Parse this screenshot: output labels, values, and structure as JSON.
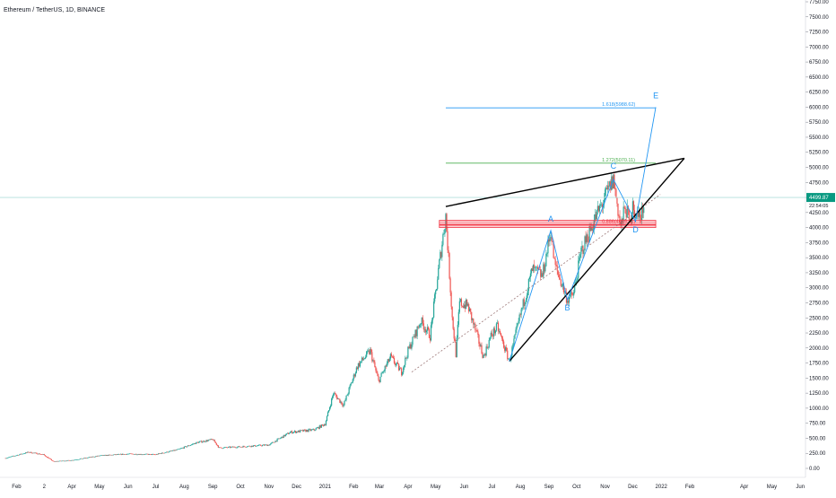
{
  "header": {
    "title": "Ethereum / TetherUS, 1D, BINANCE"
  },
  "colors": {
    "up": "#26a69a",
    "down": "#ef5350",
    "wave_line": "#2196f3",
    "fib_blue": "#2196f3",
    "fib_green": "#4caf50",
    "fib_red": "#f23645",
    "trendline": "#000000",
    "dotted": "#9e7a7a",
    "price_tag": "#089981",
    "current_line": "#b2dfdb"
  },
  "chart_data": {
    "type": "candlestick",
    "title": "Ethereum / TetherUS, 1D, BINANCE",
    "ylim": [
      -100,
      7800
    ],
    "y_ticks": [
      0,
      250,
      500,
      750,
      1000,
      1250,
      1500,
      1750,
      2000,
      2250,
      2500,
      2750,
      3000,
      3250,
      3500,
      3750,
      4000,
      4250,
      4500,
      4750,
      5000,
      5250,
      5500,
      5750,
      6000,
      6250,
      6500,
      6750,
      7000,
      7250,
      7500,
      7750
    ],
    "y_tick_labels": [
      "0.00",
      "250.00",
      "500.00",
      "750.00",
      "1000.00",
      "1250.00",
      "1500.00",
      "1750.00",
      "2000.00",
      "2250.00",
      "2500.00",
      "2750.00",
      "3000.00",
      "3250.00",
      "3500.00",
      "3750.00",
      "4000.00",
      "4250.00",
      "4500.00",
      "4750.00",
      "5000.00",
      "5250.00",
      "5500.00",
      "5750.00",
      "6000.00",
      "6250.00",
      "6500.00",
      "6750.00",
      "7000.00",
      "7250.00",
      "7500.00",
      "7750.00"
    ],
    "x_ticks": [
      {
        "label": "Feb",
        "date": "2020-02-01"
      },
      {
        "label": "2",
        "date": "2020-03-02"
      },
      {
        "label": "Apr",
        "date": "2020-04-01"
      },
      {
        "label": "May",
        "date": "2020-05-01"
      },
      {
        "label": "Jun",
        "date": "2020-06-01"
      },
      {
        "label": "Jul",
        "date": "2020-07-01"
      },
      {
        "label": "Aug",
        "date": "2020-08-01"
      },
      {
        "label": "Sep",
        "date": "2020-09-01"
      },
      {
        "label": "Oct",
        "date": "2020-10-01"
      },
      {
        "label": "Nov",
        "date": "2020-11-01"
      },
      {
        "label": "Dec",
        "date": "2020-12-01"
      },
      {
        "label": "2021",
        "date": "2021-01-01"
      },
      {
        "label": "Feb",
        "date": "2021-02-01"
      },
      {
        "label": "Mar",
        "date": "2021-03-01"
      },
      {
        "label": "Apr",
        "date": "2021-04-01"
      },
      {
        "label": "May",
        "date": "2021-05-01"
      },
      {
        "label": "Jun",
        "date": "2021-06-01"
      },
      {
        "label": "Jul",
        "date": "2021-07-01"
      },
      {
        "label": "Aug",
        "date": "2021-08-01"
      },
      {
        "label": "Sep",
        "date": "2021-09-01"
      },
      {
        "label": "Oct",
        "date": "2021-10-01"
      },
      {
        "label": "Nov",
        "date": "2021-11-01"
      },
      {
        "label": "Dec",
        "date": "2021-12-01"
      },
      {
        "label": "2022",
        "date": "2022-01-01"
      },
      {
        "label": "Feb",
        "date": "2022-02-01"
      },
      {
        "label": "Apr",
        "date": "2022-04-01"
      },
      {
        "label": "May",
        "date": "2022-05-01"
      },
      {
        "label": "Jun",
        "date": "2022-06-01"
      }
    ],
    "price_path": [
      [
        "2020-01-20",
        170
      ],
      [
        "2020-02-14",
        270
      ],
      [
        "2020-03-01",
        230
      ],
      [
        "2020-03-12",
        115
      ],
      [
        "2020-04-01",
        135
      ],
      [
        "2020-05-01",
        210
      ],
      [
        "2020-06-01",
        240
      ],
      [
        "2020-07-01",
        230
      ],
      [
        "2020-07-25",
        310
      ],
      [
        "2020-08-15",
        430
      ],
      [
        "2020-09-01",
        480
      ],
      [
        "2020-09-08",
        340
      ],
      [
        "2020-10-01",
        360
      ],
      [
        "2020-11-01",
        390
      ],
      [
        "2020-11-24",
        600
      ],
      [
        "2020-12-20",
        640
      ],
      [
        "2021-01-01",
        740
      ],
      [
        "2021-01-10",
        1250
      ],
      [
        "2021-01-21",
        1050
      ],
      [
        "2021-02-05",
        1700
      ],
      [
        "2021-02-19",
        1950
      ],
      [
        "2021-02-28",
        1450
      ],
      [
        "2021-03-13",
        1850
      ],
      [
        "2021-03-25",
        1600
      ],
      [
        "2021-04-01",
        1950
      ],
      [
        "2021-04-15",
        2450
      ],
      [
        "2021-04-25",
        2200
      ],
      [
        "2021-05-05",
        3400
      ],
      [
        "2021-05-12",
        4200
      ],
      [
        "2021-05-19",
        2500
      ],
      [
        "2021-05-23",
        1900
      ],
      [
        "2021-05-27",
        2750
      ],
      [
        "2021-06-05",
        2700
      ],
      [
        "2021-06-22",
        1850
      ],
      [
        "2021-06-30",
        2200
      ],
      [
        "2021-07-07",
        2350
      ],
      [
        "2021-07-20",
        1780
      ],
      [
        "2021-08-01",
        2550
      ],
      [
        "2021-08-14",
        3300
      ],
      [
        "2021-08-25",
        3200
      ],
      [
        "2021-09-03",
        3950
      ],
      [
        "2021-09-07",
        3400
      ],
      [
        "2021-09-21",
        2800
      ],
      [
        "2021-09-28",
        2900
      ],
      [
        "2021-10-06",
        3600
      ],
      [
        "2021-10-21",
        4150
      ],
      [
        "2021-10-29",
        4400
      ],
      [
        "2021-11-10",
        4800
      ],
      [
        "2021-11-18",
        4000
      ],
      [
        "2021-11-23",
        4350
      ],
      [
        "2021-11-28",
        4050
      ],
      [
        "2021-12-01",
        4500
      ],
      [
        "2021-12-04",
        4100
      ],
      [
        "2021-12-07",
        4300
      ],
      [
        "2021-12-10",
        4100
      ],
      [
        "2021-12-13",
        4450
      ]
    ],
    "current_price": 4499.87,
    "current_price_label": "4499.87",
    "countdown_label": "22:54:05",
    "fib_levels": [
      {
        "ratio_label": "1.618(5988.62)",
        "value": 5988.62,
        "color": "#2196f3",
        "start": "2021-05-12",
        "end": "2021-12-26"
      },
      {
        "ratio_label": "1.272(5070.11)",
        "value": 5070.11,
        "color": "#4caf50",
        "start": "2021-05-12",
        "end": "2021-12-26"
      },
      {
        "ratio_label": "0.886(4045.41)",
        "value": 4045.41,
        "color": "#f23645",
        "start": "2021-05-05",
        "end": "2021-12-26"
      }
    ],
    "resistance_box": {
      "from": 4000,
      "to": 4120,
      "start": "2021-05-05",
      "end": "2021-12-26"
    },
    "waves": [
      {
        "label": "A",
        "date": "2021-09-03",
        "price": 3950,
        "label_price": 4100
      },
      {
        "label": "B",
        "date": "2021-09-21",
        "price": 2800,
        "label_price": 2620
      },
      {
        "label": "C",
        "date": "2021-11-10",
        "price": 4800,
        "label_price": 4980
      },
      {
        "label": "D",
        "date": "2021-12-04",
        "price": 4100,
        "label_price": 3920
      },
      {
        "label": "E",
        "date": "2021-12-26",
        "price": 6000,
        "label_price": 6150
      }
    ],
    "wave_start": {
      "date": "2021-07-20",
      "price": 1780
    },
    "wedge_upper": [
      [
        "2021-05-12",
        4350
      ],
      [
        "2022-01-26",
        5150
      ]
    ],
    "wedge_lower": [
      [
        "2021-07-20",
        1780
      ],
      [
        "2022-01-26",
        5150
      ]
    ],
    "dotted_trend": [
      [
        "2021-04-05",
        1600
      ],
      [
        "2021-12-31",
        4550
      ]
    ],
    "grid": false,
    "legend": "none"
  }
}
